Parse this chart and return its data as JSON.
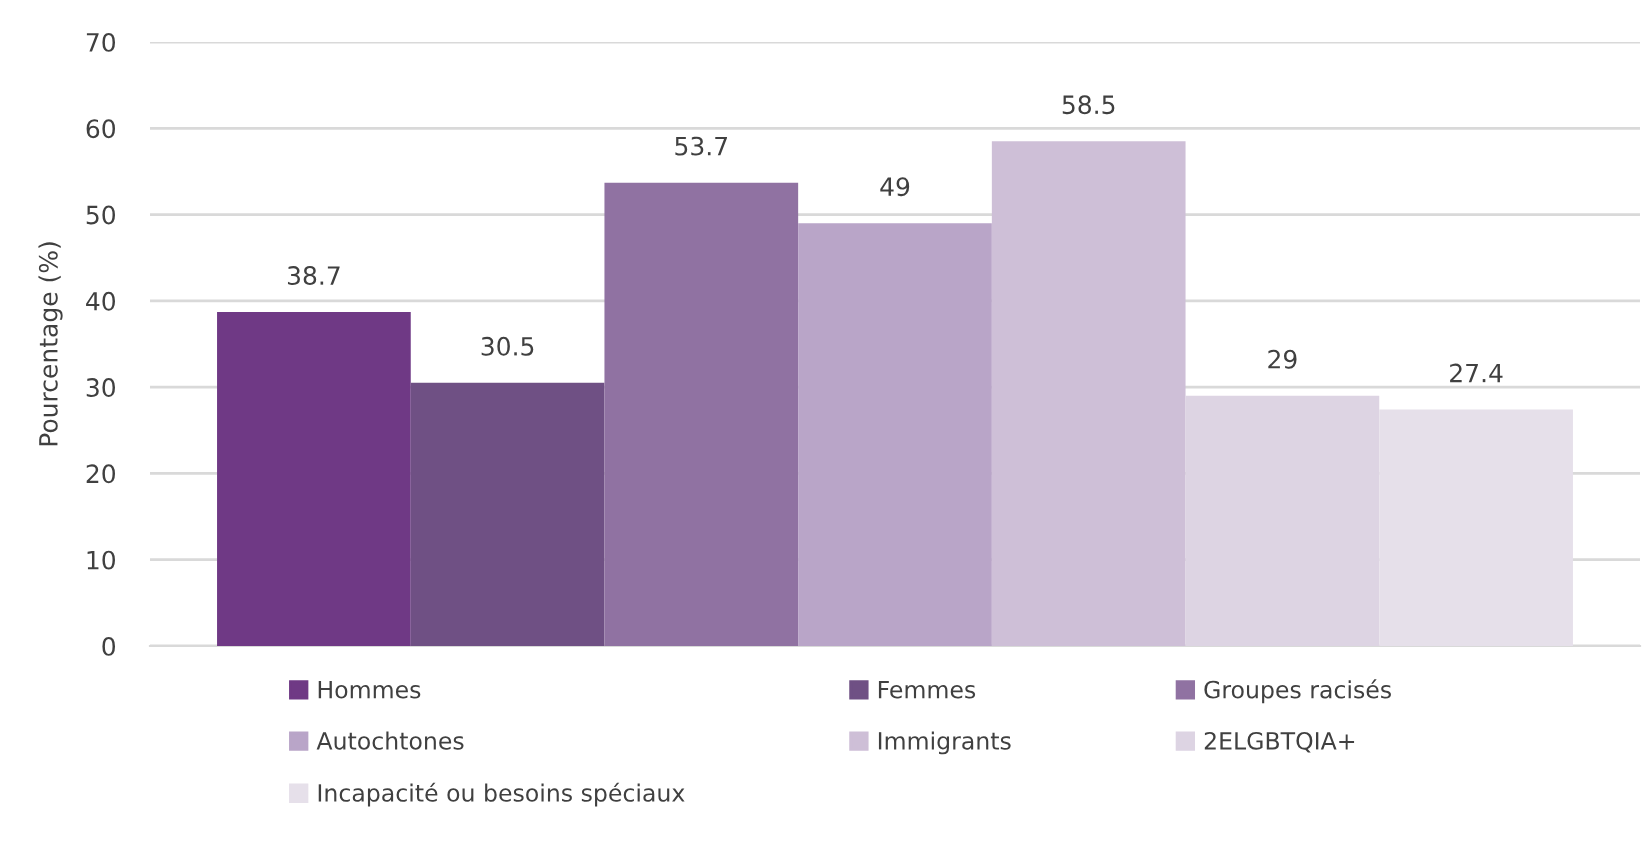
{
  "chart_data": {
    "type": "bar",
    "ylabel": "Pourcentage (%)",
    "categories": [
      null
    ],
    "series": [
      {
        "name": "Hommes",
        "color": "#6f3985",
        "values": [
          38.7
        ]
      },
      {
        "name": "Femmes",
        "color": "#6f5084",
        "values": [
          30.5
        ]
      },
      {
        "name": "Groupes racisés",
        "color": "#9072a2",
        "values": [
          53.7
        ]
      },
      {
        "name": "Autochtones",
        "color": "#b9a5c8",
        "values": [
          49
        ]
      },
      {
        "name": "Immigrants",
        "color": "#cebfd7",
        "values": [
          58.5
        ]
      },
      {
        "name": "2ELGBTQIA+",
        "color": "#ddd4e3",
        "values": [
          29
        ]
      },
      {
        "name": "Incapacité ou besoins spéciaux",
        "color": "#e6e0ea",
        "values": [
          27.4
        ]
      }
    ],
    "ylim": [
      0,
      70
    ],
    "yticks": [
      0,
      10,
      20,
      30,
      40,
      50,
      60,
      70
    ],
    "grid": "y",
    "legend": "bottom",
    "data_labels": true
  }
}
